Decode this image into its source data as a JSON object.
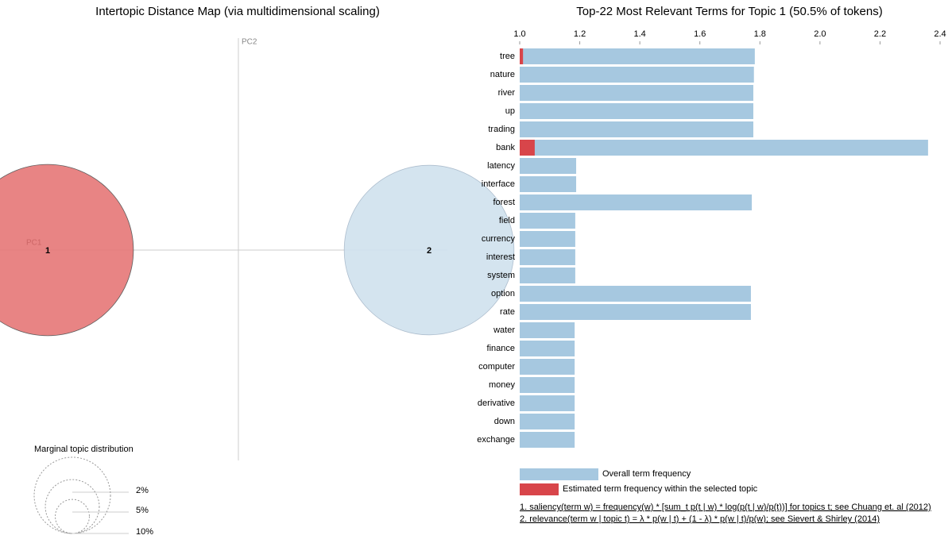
{
  "chart_data": [
    {
      "type": "bubble",
      "title": "Intertopic Distance Map (via multidimensional scaling)",
      "x_label": "PC1",
      "y_label": "PC2",
      "categories": [
        "1",
        "2"
      ],
      "x": [
        -0.2,
        0.2
      ],
      "values": [
        0,
        0
      ],
      "sizes": [
        50.5,
        49.5
      ],
      "colors": [
        "#e77e7e",
        "#d2e3ef"
      ],
      "xlim": [
        -0.25,
        0.25
      ],
      "ylim": [
        -0.25,
        0.25
      ],
      "size_legend": {
        "title": "Marginal topic distribution",
        "values": [
          2,
          5,
          10
        ],
        "value_labels": [
          "2%",
          "5%",
          "10%"
        ]
      }
    },
    {
      "type": "bar",
      "horizontal": true,
      "title": "Top-22 Most Relevant Terms for Topic 1 (50.5% of tokens)",
      "categories": [
        "tree",
        "nature",
        "river",
        "up",
        "trading",
        "bank",
        "latency",
        "interface",
        "forest",
        "field",
        "currency",
        "interest",
        "system",
        "option",
        "rate",
        "water",
        "finance",
        "computer",
        "money",
        "derivative",
        "down",
        "exchange"
      ],
      "xlim": [
        1.0,
        2.4
      ],
      "xticks": [
        {
          "value": 1.0,
          "label": "1.0"
        },
        1.2,
        1.4,
        1.6,
        1.8,
        {
          "value": 2.0,
          "label": "2.0"
        },
        2.2,
        2.4
      ],
      "series": [
        {
          "name": "Overall term frequency",
          "color": "#a6c8e0",
          "values": [
            1.783,
            1.78,
            1.778,
            1.778,
            1.778,
            2.36,
            1.188,
            1.188,
            1.773,
            1.185,
            1.185,
            1.185,
            1.185,
            1.77,
            1.77,
            1.183,
            1.183,
            1.183,
            1.183,
            1.183,
            1.183,
            1.183
          ]
        },
        {
          "name": "Estimated term frequency within the selected topic",
          "color": "#d8454a",
          "values": [
            1.011,
            1.0,
            1.0,
            1.0,
            1.0,
            1.05,
            1.0,
            1.0,
            1.0,
            1.0,
            1.0,
            1.0,
            1.0,
            1.0,
            1.0,
            1.0,
            1.0,
            1.0,
            1.0,
            1.0,
            1.0,
            1.0
          ]
        }
      ],
      "footnotes": [
        "1. saliency(term w) = frequency(w) * [sum_t p(t | w) * log(p(t | w)/p(t))] for topics t; see Chuang et. al (2012)",
        "2. relevance(term w | topic t) = λ * p(w | t) + (1 - λ) * p(w | t)/p(w); see Sievert & Shirley (2014)"
      ]
    }
  ]
}
